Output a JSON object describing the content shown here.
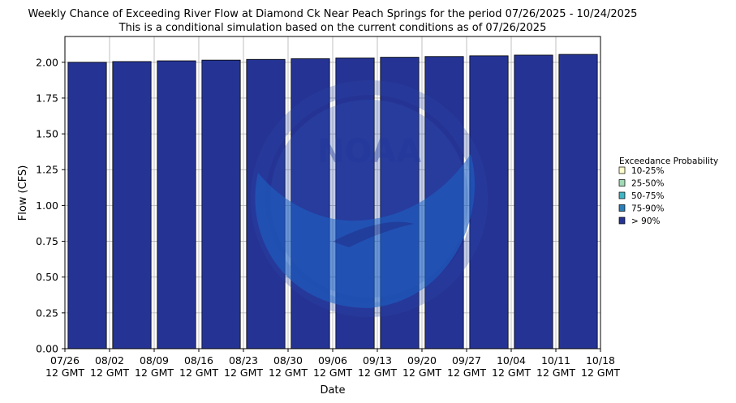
{
  "chart_data": {
    "type": "bar",
    "title": "Weekly Chance of Exceeding River Flow at Diamond Ck Near Peach Springs for the period 07/26/2025 - 10/24/2025",
    "subtitle": "This is a conditional simulation based on the current conditions as of 07/26/2025",
    "xlabel": "Date",
    "ylabel": "Flow (CFS)",
    "ylim": [
      0,
      2.18
    ],
    "yticks": [
      "0.00",
      "0.25",
      "0.50",
      "0.75",
      "1.00",
      "1.25",
      "1.50",
      "1.75",
      "2.00"
    ],
    "xticks": [
      {
        "line1": "07/26",
        "line2": "12 GMT"
      },
      {
        "line1": "08/02",
        "line2": "12 GMT"
      },
      {
        "line1": "08/09",
        "line2": "12 GMT"
      },
      {
        "line1": "08/16",
        "line2": "12 GMT"
      },
      {
        "line1": "08/23",
        "line2": "12 GMT"
      },
      {
        "line1": "08/30",
        "line2": "12 GMT"
      },
      {
        "line1": "09/06",
        "line2": "12 GMT"
      },
      {
        "line1": "09/13",
        "line2": "12 GMT"
      },
      {
        "line1": "09/20",
        "line2": "12 GMT"
      },
      {
        "line1": "09/27",
        "line2": "12 GMT"
      },
      {
        "line1": "10/04",
        "line2": "12 GMT"
      },
      {
        "line1": "10/11",
        "line2": "12 GMT"
      },
      {
        "line1": "10/18",
        "line2": "12 GMT"
      }
    ],
    "series": [
      {
        "name": "> 90%",
        "color": "#253494",
        "values": [
          2.0,
          2.005,
          2.01,
          2.015,
          2.02,
          2.025,
          2.03,
          2.035,
          2.04,
          2.045,
          2.05,
          2.055
        ]
      }
    ],
    "legend": {
      "title": "Exceedance Probability",
      "placement": "right",
      "items": [
        {
          "label": "10-25%",
          "color": "#ffffcc"
        },
        {
          "label": "25-50%",
          "color": "#a1dab4"
        },
        {
          "label": "50-75%",
          "color": "#41b6c4"
        },
        {
          "label": "75-90%",
          "color": "#2c7fb8"
        },
        {
          "label": "> 90%",
          "color": "#253494"
        }
      ]
    },
    "grid": true
  },
  "watermark": {
    "text": "NOAA",
    "ring_text": "NATIONAL OCEANIC AND ATMOSPHERIC ADMINISTRATION · U.S. DEPARTMENT OF COMMERCE"
  }
}
